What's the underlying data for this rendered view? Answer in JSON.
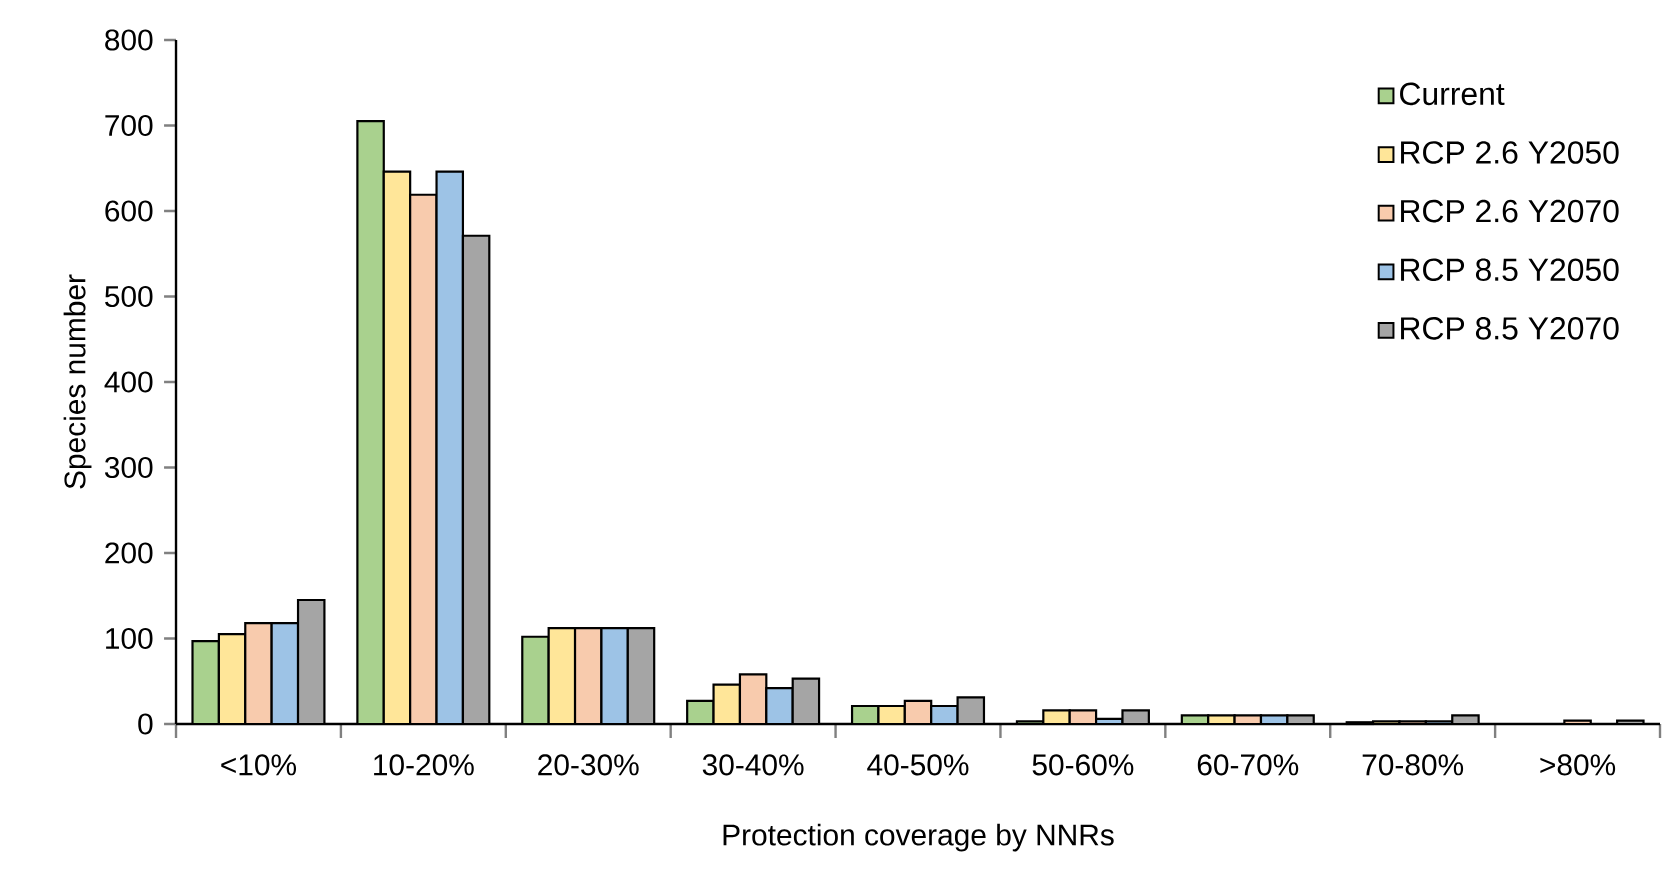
{
  "chart_data": {
    "type": "bar",
    "xlabel": "Protection coverage by NNRs",
    "ylabel": "Species number",
    "categories": [
      "<10%",
      "10-20%",
      "20-30%",
      "30-40%",
      "40-50%",
      "50-60%",
      "60-70%",
      "70-80%",
      ">80%"
    ],
    "series": [
      {
        "name": "Current",
        "color": "#a9d18e",
        "values": [
          97,
          705,
          102,
          27,
          21,
          3,
          10,
          2,
          null
        ]
      },
      {
        "name": "RCP 2.6 Y2050",
        "color": "#ffe699",
        "values": [
          105,
          646,
          112,
          46,
          21,
          16,
          10,
          3,
          null
        ]
      },
      {
        "name": "RCP 2.6 Y2070",
        "color": "#f8cbad",
        "values": [
          118,
          619,
          112,
          58,
          27,
          16,
          10,
          3,
          4
        ]
      },
      {
        "name": "RCP 8.5 Y2050",
        "color": "#9dc3e6",
        "values": [
          118,
          646,
          112,
          42,
          21,
          6,
          10,
          3,
          null
        ]
      },
      {
        "name": "RCP 8.5 Y2070",
        "color": "#a5a5a5",
        "values": [
          145,
          571,
          112,
          53,
          31,
          16,
          10,
          10,
          4
        ]
      }
    ],
    "ylim": [
      0,
      800
    ],
    "yticks": [
      0,
      100,
      200,
      300,
      400,
      500,
      600,
      700,
      800
    ],
    "grid": false,
    "legend": "top right"
  }
}
